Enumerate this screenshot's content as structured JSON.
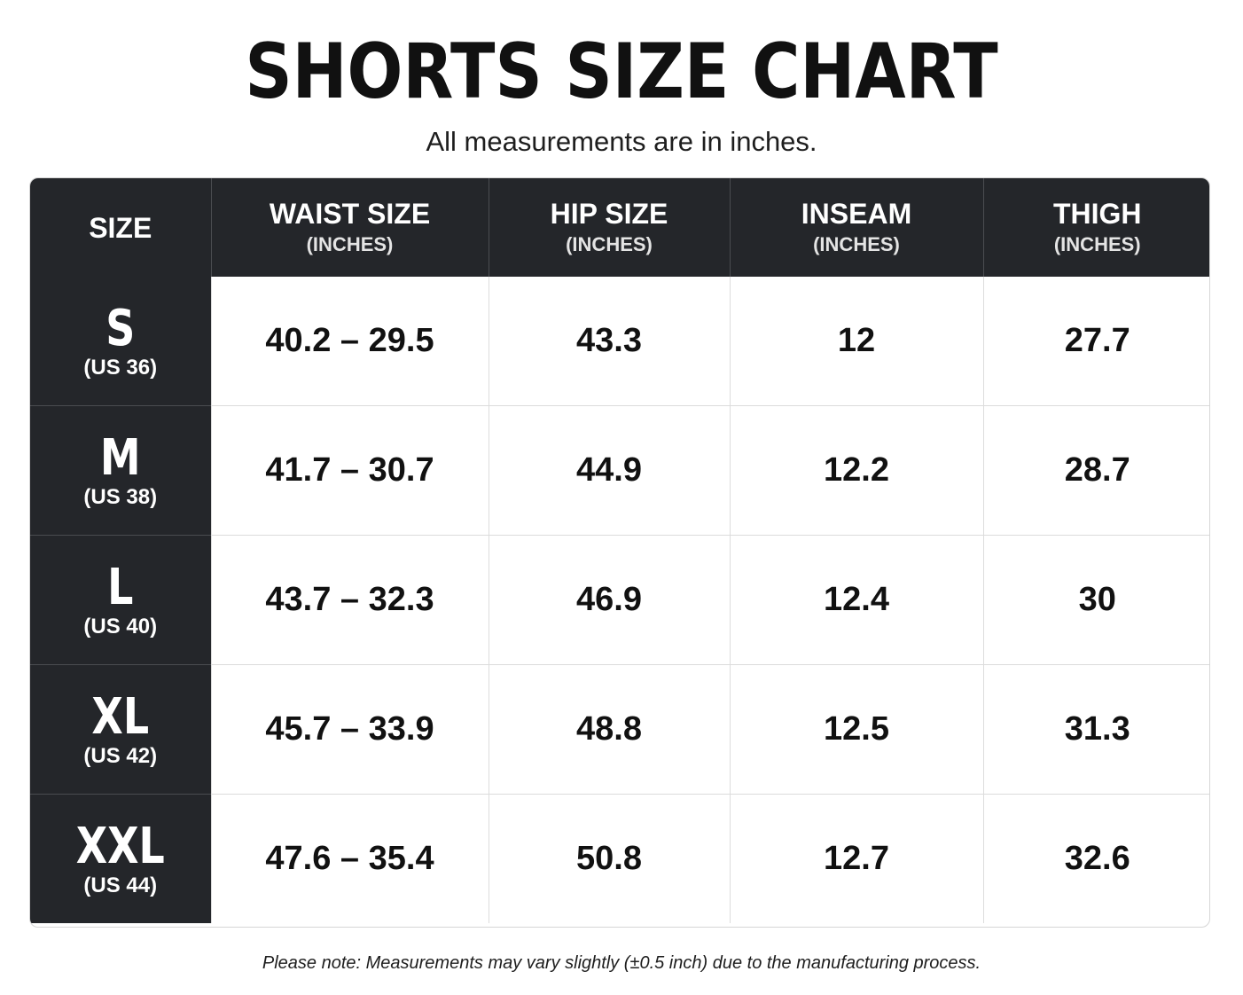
{
  "title": "SHORTS SIZE CHART",
  "subtitle": "All measurements are in inches.",
  "header": {
    "size": "SIZE",
    "columns": [
      {
        "label": "WAIST SIZE",
        "unit": "(INCHES)"
      },
      {
        "label": "HIP SIZE",
        "unit": "(INCHES)"
      },
      {
        "label": "INSEAM",
        "unit": "(INCHES)"
      },
      {
        "label": "THIGH",
        "unit": "(INCHES)"
      }
    ]
  },
  "rows": [
    {
      "size": "S",
      "us": "(US 36)",
      "waist": "40.2 – 29.5",
      "hip": "43.3",
      "inseam": "12",
      "thigh": "27.7"
    },
    {
      "size": "M",
      "us": "(US 38)",
      "waist": "41.7 – 30.7",
      "hip": "44.9",
      "inseam": "12.2",
      "thigh": "28.7"
    },
    {
      "size": "L",
      "us": "(US 40)",
      "waist": "43.7 – 32.3",
      "hip": "46.9",
      "inseam": "12.4",
      "thigh": "30"
    },
    {
      "size": "XL",
      "us": "(US 42)",
      "waist": "45.7 – 33.9",
      "hip": "48.8",
      "inseam": "12.5",
      "thigh": "31.3"
    },
    {
      "size": "XXL",
      "us": "(US 44)",
      "waist": "47.6 – 35.4",
      "hip": "50.8",
      "inseam": "12.7",
      "thigh": "32.6"
    }
  ],
  "note": "Please note: Measurements may vary slightly (±0.5 inch) due to the manufacturing process.",
  "colors": {
    "header_bg": "#24262a",
    "header_text": "#ffffff",
    "cell_text": "#111111",
    "grid": "#dcdcdc"
  }
}
